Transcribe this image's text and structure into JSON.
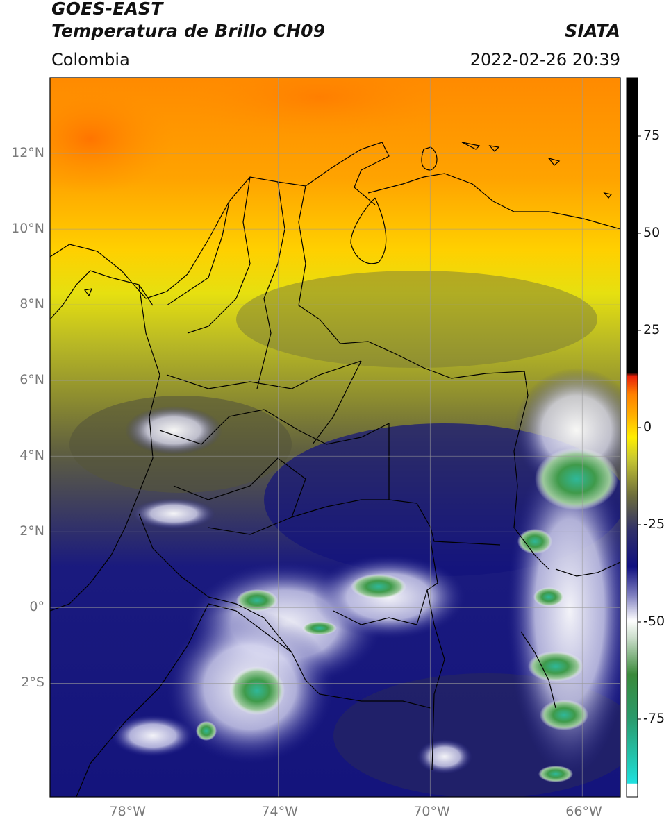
{
  "header": {
    "line1": "GOES-EAST",
    "line2": "Temperatura de Brillo CH09",
    "brand": "SIATA",
    "region": "Colombia",
    "timestamp": "2022-02-26 20:39"
  },
  "map": {
    "lon_range": [
      -80,
      -65
    ],
    "lat_range": [
      -5,
      14
    ],
    "lat_ticks": [
      {
        "value": 12,
        "label": "12°N"
      },
      {
        "value": 10,
        "label": "10°N"
      },
      {
        "value": 8,
        "label": "8°N"
      },
      {
        "value": 6,
        "label": "6°N"
      },
      {
        "value": 4,
        "label": "4°N"
      },
      {
        "value": 2,
        "label": "2°N"
      },
      {
        "value": 0,
        "label": "0°"
      },
      {
        "value": -2,
        "label": "2°S"
      }
    ],
    "lon_ticks": [
      {
        "value": -78,
        "label": "78°W"
      },
      {
        "value": -74,
        "label": "74°W"
      },
      {
        "value": -70,
        "label": "70°W"
      },
      {
        "value": -66,
        "label": "66°W"
      }
    ]
  },
  "colorbar": {
    "range": [
      -95,
      90
    ],
    "ticks": [
      {
        "value": 75,
        "label": "75"
      },
      {
        "value": 50,
        "label": "50"
      },
      {
        "value": 25,
        "label": "25"
      },
      {
        "value": 0,
        "label": "0"
      },
      {
        "value": -25,
        "label": "-25"
      },
      {
        "value": -50,
        "label": "-50"
      },
      {
        "value": -75,
        "label": "-75"
      }
    ],
    "colors": {
      "black": "#000000",
      "red": "#e8200a",
      "orange": "#ff8c00",
      "yellow": "#ffee00",
      "olive": "#8a8a2a",
      "navy": "#10107a",
      "white": "#ffffff",
      "green": "#3a8a3a",
      "teal": "#20d0c0"
    }
  }
}
